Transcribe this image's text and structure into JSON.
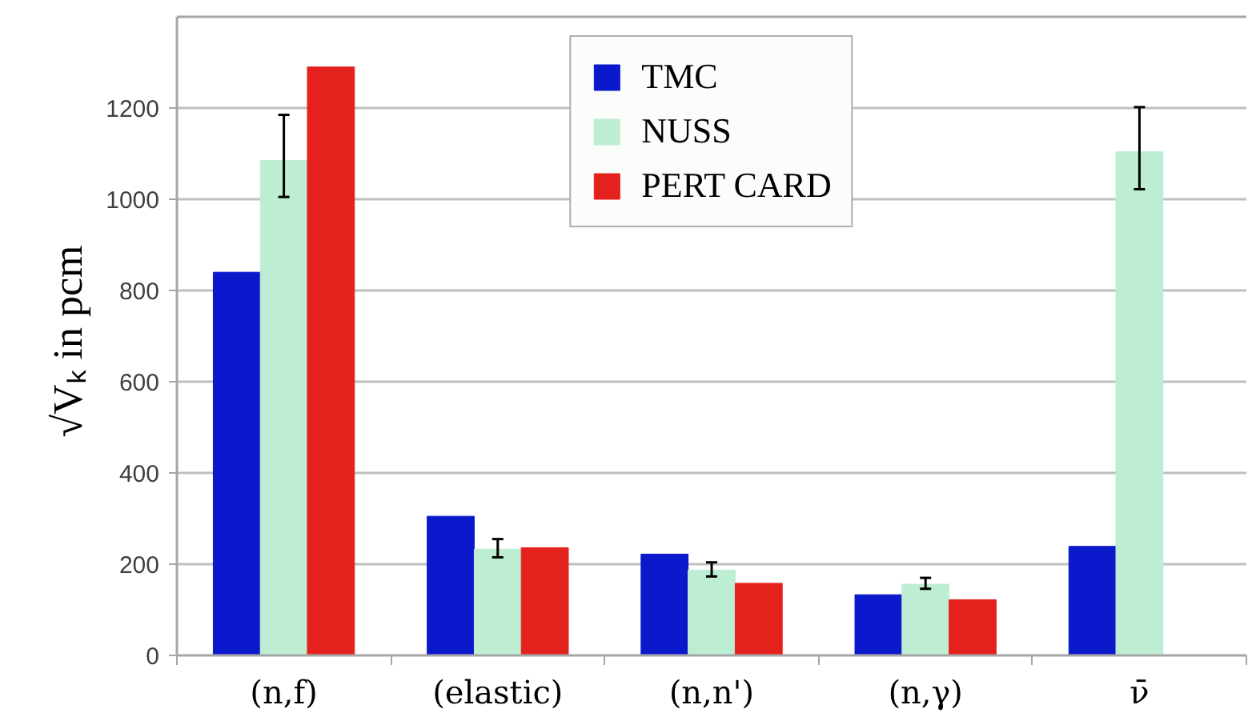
{
  "chart_data": {
    "type": "bar",
    "categories": [
      "(n,f)",
      "(elastic)",
      "(n,n')",
      "(n,γ)",
      "ν̄"
    ],
    "ylabel": "√Vₖ  in pcm",
    "series": [
      {
        "name": "TMC",
        "color": "#0a19cc",
        "values": [
          840,
          305,
          222,
          133,
          239
        ]
      },
      {
        "name": "NUSS",
        "color": "#bdeed3",
        "values": [
          1085,
          233,
          187,
          156,
          1104
        ],
        "errors": [
          [
            1005,
            1185
          ],
          [
            215,
            255
          ],
          [
            173,
            204
          ],
          [
            146,
            170
          ],
          [
            1022,
            1202
          ]
        ]
      },
      {
        "name": "PERT CARD",
        "color": "#e5211e",
        "values": [
          1290,
          236,
          158,
          122,
          null
        ]
      }
    ],
    "ylim": [
      0,
      1400
    ],
    "yticks": [
      0,
      200,
      400,
      600,
      800,
      1000,
      1200
    ],
    "grid": "y",
    "legend": "top"
  }
}
